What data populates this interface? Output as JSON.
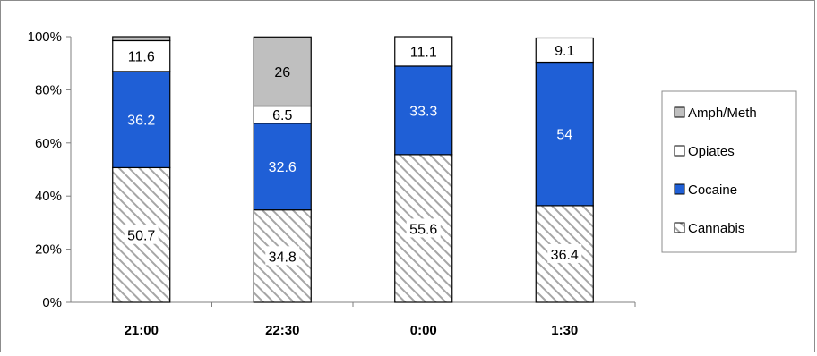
{
  "chart_data": {
    "type": "bar",
    "stacked": true,
    "percent": true,
    "categories": [
      "21:00",
      "22:30",
      "0:00",
      "1:30"
    ],
    "series": [
      {
        "name": "Cannabis",
        "values": [
          50.7,
          34.8,
          55.6,
          36.4
        ],
        "labels": [
          "50.7",
          "34.8",
          "55.6",
          "36.4"
        ],
        "fill": "hatch",
        "color": "#d9d9d9",
        "label_color": "#000000"
      },
      {
        "name": "Cocaine",
        "values": [
          36.2,
          32.6,
          33.3,
          54.0
        ],
        "labels": [
          "36.2",
          "32.6",
          "33.3",
          "54"
        ],
        "fill": "solid",
        "color": "#1f5fd6",
        "label_color": "#ffffff"
      },
      {
        "name": "Opiates",
        "values": [
          11.6,
          6.5,
          11.1,
          9.1
        ],
        "labels": [
          "11.6",
          "6.5",
          "11.1",
          "9.1"
        ],
        "fill": "solid",
        "color": "#ffffff",
        "label_color": "#000000"
      },
      {
        "name": "Amph/Meth",
        "values": [
          1.5,
          26.0,
          0,
          0
        ],
        "labels": [
          "",
          "26",
          "",
          ""
        ],
        "fill": "solid",
        "color": "#bfbfbf",
        "label_color": "#000000"
      }
    ],
    "y_ticks": [
      "0%",
      "20%",
      "40%",
      "60%",
      "80%",
      "100%"
    ],
    "ylim": [
      0,
      100
    ],
    "grid": false,
    "legend_position": "right",
    "legend_order": [
      "Amph/Meth",
      "Opiates",
      "Cocaine",
      "Cannabis"
    ]
  }
}
